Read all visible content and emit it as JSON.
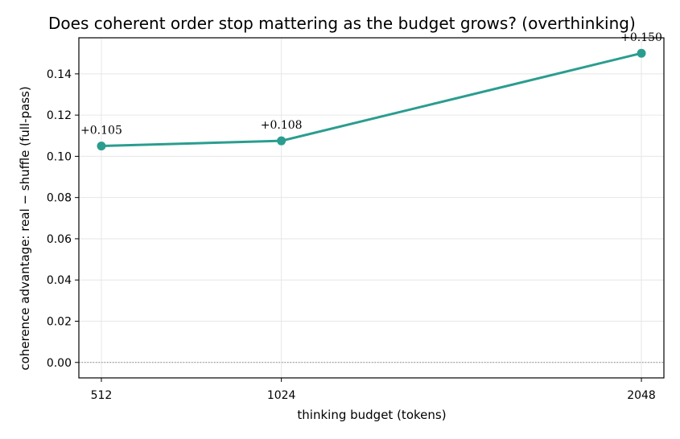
{
  "chart_data": {
    "type": "line",
    "title": "Does coherent order stop mattering as the budget grows? (overthinking)",
    "xlabel": "thinking budget (tokens)",
    "ylabel": "coherence advantage: real − shuffle (full-pass)",
    "x": [
      512,
      1024,
      2048
    ],
    "x_tick_labels": [
      "512",
      "1024",
      "2048"
    ],
    "series": [
      {
        "values": [
          0.105,
          0.1075,
          0.15
        ],
        "labels": [
          "+0.105",
          "+0.108",
          "+0.150"
        ]
      }
    ],
    "y_ticks": [
      0.0,
      0.02,
      0.04,
      0.06,
      0.08,
      0.1,
      0.12,
      0.14
    ],
    "y_tick_labels": [
      "0.00",
      "0.02",
      "0.04",
      "0.06",
      "0.08",
      "0.10",
      "0.12",
      "0.14"
    ],
    "xlim": [
      448,
      2112
    ],
    "ylim": [
      -0.0075,
      0.1575
    ],
    "reference_line": {
      "y": 0,
      "style": "dotted"
    },
    "grid": true,
    "legend": "none",
    "colors": {
      "line": "#2a9d8f",
      "grid": "#e6e6e6",
      "reference": "#888888"
    }
  }
}
